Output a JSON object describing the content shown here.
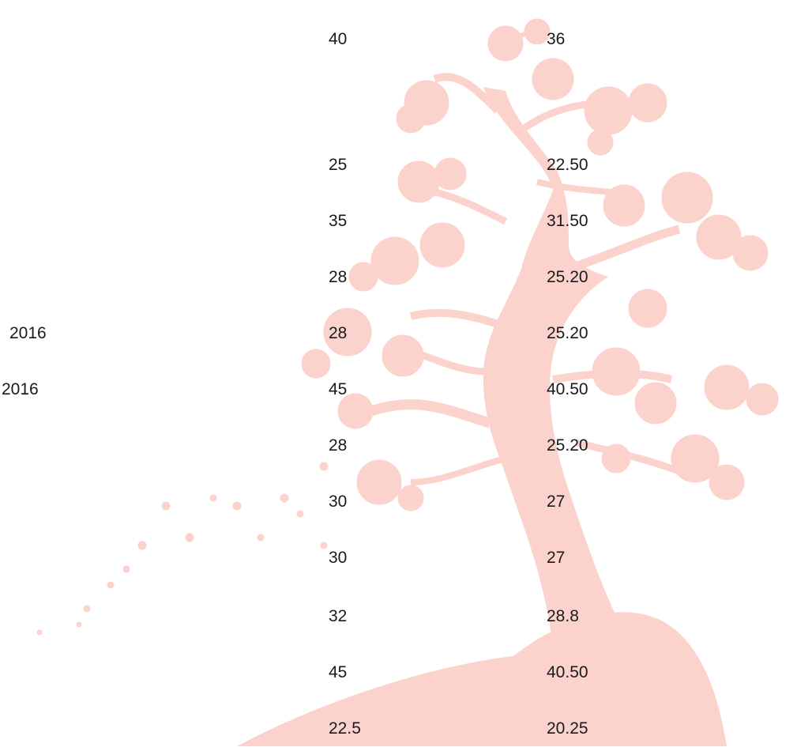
{
  "rows": [
    {
      "left": "",
      "a": "40",
      "b": "36"
    },
    {
      "left": "",
      "a": "25",
      "b": "22.50"
    },
    {
      "left": "",
      "a": "35",
      "b": "31.50"
    },
    {
      "left": "",
      "a": "28",
      "b": "25.20"
    },
    {
      "left": "2016",
      "a": "28",
      "b": "25.20"
    },
    {
      "left": "2016",
      "a": "45",
      "b": "40.50"
    },
    {
      "left": "",
      "a": "28",
      "b": "25.20"
    },
    {
      "left": "",
      "a": "30",
      "b": "27"
    },
    {
      "left": "",
      "a": "30",
      "b": "27"
    },
    {
      "left": "",
      "a": "32",
      "b": "28.8"
    },
    {
      "left": "",
      "a": "45",
      "b": "40.50"
    },
    {
      "left": "",
      "a": "22.5",
      "b": "20.25"
    }
  ],
  "colors": {
    "tree": "#fbd2cc",
    "text": "#1a1a1a"
  }
}
